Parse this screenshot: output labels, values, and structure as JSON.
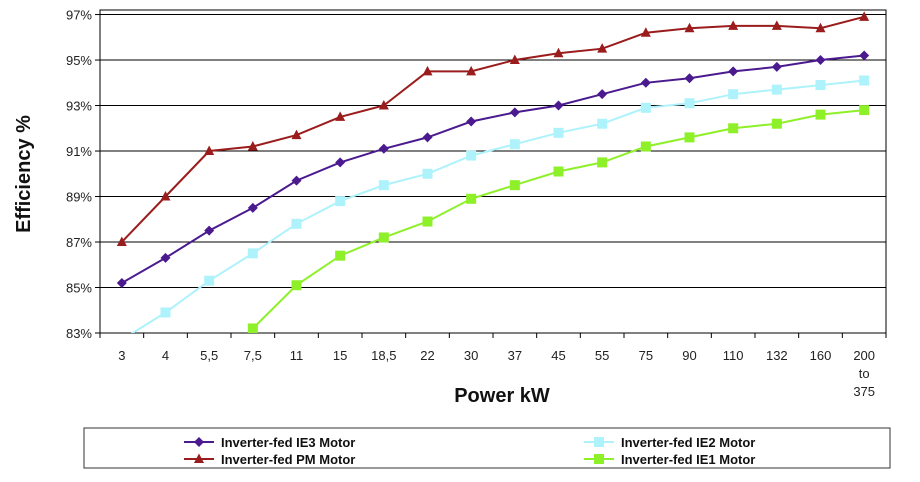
{
  "chart_data": {
    "type": "line",
    "title": "",
    "xlabel": "Power kW",
    "ylabel": "Efficiency  %",
    "categories": [
      "3",
      "4",
      "5,5",
      "7,5",
      "11",
      "15",
      "18,5",
      "22",
      "30",
      "37",
      "45",
      "55",
      "75",
      "90",
      "110",
      "132",
      "160",
      "200 to 375"
    ],
    "category_lines": [
      [
        "3"
      ],
      [
        "4"
      ],
      [
        "5,5"
      ],
      [
        "7,5"
      ],
      [
        "11"
      ],
      [
        "15"
      ],
      [
        "18,5"
      ],
      [
        "22"
      ],
      [
        "30"
      ],
      [
        "37"
      ],
      [
        "45"
      ],
      [
        "55"
      ],
      [
        "75"
      ],
      [
        "90"
      ],
      [
        "110"
      ],
      [
        "132"
      ],
      [
        "160"
      ],
      [
        "200",
        "to",
        "375"
      ]
    ],
    "ylim": [
      83,
      97.2
    ],
    "yticks": [
      83,
      85,
      87,
      89,
      91,
      93,
      95,
      97
    ],
    "ytick_labels": [
      "83%",
      "85%",
      "87%",
      "89%",
      "91%",
      "93%",
      "95%",
      "97%"
    ],
    "grid": true,
    "legend_position": "bottom",
    "series": [
      {
        "name": "Inverter-fed IE3 Motor",
        "color": "#4b1a8f",
        "marker": "diamond",
        "values": [
          85.2,
          86.3,
          87.5,
          88.5,
          89.7,
          90.5,
          91.1,
          91.6,
          92.3,
          92.7,
          93.0,
          93.5,
          94.0,
          94.2,
          94.5,
          94.7,
          95.0,
          95.2
        ]
      },
      {
        "name": "Inverter-fed PM Motor",
        "color": "#9b1c1c",
        "marker": "triangle",
        "values": [
          87.0,
          89.0,
          91.0,
          91.2,
          91.7,
          92.5,
          93.0,
          94.5,
          94.5,
          95.0,
          95.3,
          95.5,
          96.2,
          96.4,
          96.5,
          96.5,
          96.4,
          96.9
        ]
      },
      {
        "name": "Inverter-fed IE2 Motor",
        "color": "#aef2fb",
        "marker": "square",
        "values": [
          82.7,
          83.9,
          85.3,
          86.5,
          87.8,
          88.8,
          89.5,
          90.0,
          90.8,
          91.3,
          91.8,
          92.2,
          92.9,
          93.1,
          93.5,
          93.7,
          93.9,
          94.1
        ]
      },
      {
        "name": "Inverter-fed IE1 Motor",
        "color": "#8ef028",
        "marker": "square",
        "values": [
          null,
          null,
          null,
          83.2,
          85.1,
          86.4,
          87.2,
          87.9,
          88.9,
          89.5,
          90.1,
          90.5,
          91.2,
          91.6,
          92.0,
          92.2,
          92.6,
          92.8
        ]
      }
    ]
  }
}
